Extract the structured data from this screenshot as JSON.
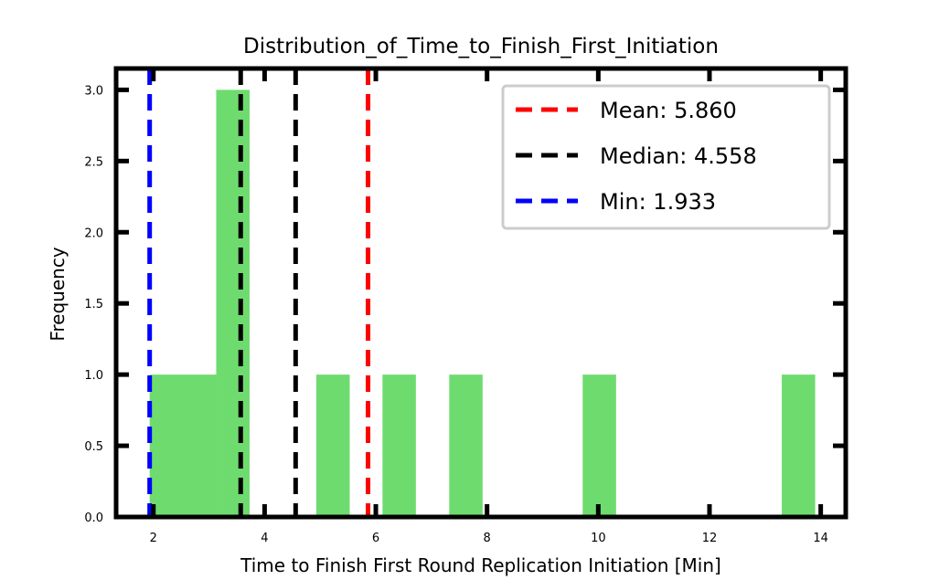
{
  "chart_data": {
    "type": "bar",
    "title": "Distribution_of_Time_to_Finish_First_Initiation",
    "xlabel": "Time to Finish First Round Replication Initiation [Min]",
    "ylabel": "Frequency",
    "xlim": [
      1.33,
      14.45
    ],
    "ylim": [
      0,
      3.15
    ],
    "xticks": [
      2,
      4,
      6,
      8,
      10,
      12,
      14
    ],
    "xtick_labels": [
      "2",
      "4",
      "6",
      "8",
      "10",
      "12",
      "14"
    ],
    "yticks": [
      0,
      0.5,
      1.0,
      1.5,
      2.0,
      2.5,
      3.0
    ],
    "ytick_labels": [
      "0.0",
      "0.5",
      "1.0",
      "1.5",
      "2.0",
      "2.5",
      "3.0"
    ],
    "grid": false,
    "legend_position": "top-right",
    "bars": [
      {
        "x0": 1.933,
        "x1": 3.13,
        "value": 1
      },
      {
        "x0": 3.13,
        "x1": 3.73,
        "value": 3
      },
      {
        "x0": 4.93,
        "x1": 5.53,
        "value": 1
      },
      {
        "x0": 6.12,
        "x1": 6.72,
        "value": 1
      },
      {
        "x0": 7.32,
        "x1": 7.92,
        "value": 1
      },
      {
        "x0": 9.72,
        "x1": 10.32,
        "value": 1
      },
      {
        "x0": 13.3,
        "x1": 13.9,
        "value": 1
      }
    ],
    "bar_color": "#6edb6e",
    "reference_lines": [
      {
        "label": "Mean: 5.860",
        "x": 5.86,
        "color": "#ff0000"
      },
      {
        "label": "Median: 4.558",
        "x": 4.558,
        "color": "#000000"
      },
      {
        "label": "Min: 1.933",
        "x": 1.933,
        "color": "#0000ff"
      }
    ],
    "extra_dashed_line_x": 3.57
  }
}
